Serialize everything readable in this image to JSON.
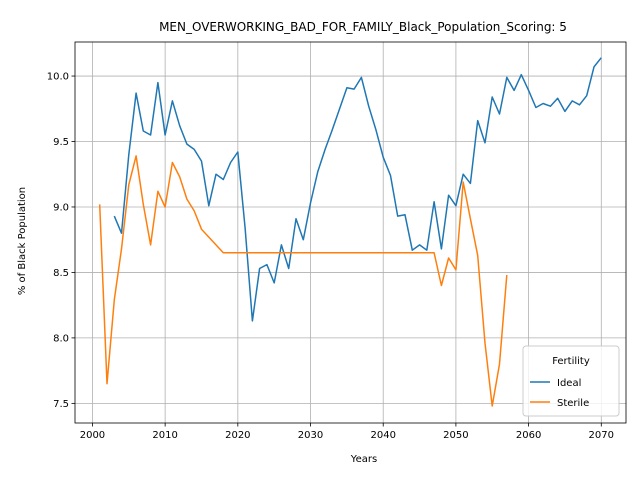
{
  "chart_data": {
    "type": "line",
    "title": "MEN_OVERWORKING_BAD_FOR_FAMILY_Black_Population_Scoring: 5",
    "xlabel": "Years",
    "ylabel": "% of Black Population",
    "xlim": [
      1997.6,
      2073.4
    ],
    "ylim": [
      7.35,
      10.26
    ],
    "xticks": [
      2000,
      2010,
      2020,
      2030,
      2040,
      2050,
      2060,
      2070
    ],
    "yticks": [
      7.5,
      8.0,
      8.5,
      9.0,
      9.5,
      10.0
    ],
    "ytick_labels": [
      "7.5",
      "8.0",
      "8.5",
      "9.0",
      "9.5",
      "10.0"
    ],
    "grid": true,
    "legend": {
      "title": "Fertility",
      "location": "lower right"
    },
    "series": [
      {
        "name": "Ideal",
        "color": "#1f77b4",
        "x": [
          2003,
          2004,
          2005,
          2006,
          2007,
          2008,
          2009,
          2010,
          2011,
          2012,
          2013,
          2014,
          2015,
          2016,
          2017,
          2018,
          2019,
          2020,
          2021,
          2022,
          2023,
          2024,
          2025,
          2026,
          2027,
          2028,
          2029,
          2030,
          2031,
          2032,
          2033,
          2034,
          2035,
          2036,
          2037,
          2038,
          2039,
          2040,
          2041,
          2042,
          2043,
          2044,
          2045,
          2046,
          2047,
          2048,
          2049,
          2050,
          2051,
          2052,
          2053,
          2054,
          2055,
          2056,
          2057,
          2058,
          2059,
          2060,
          2061,
          2062,
          2063,
          2064,
          2065,
          2066,
          2067,
          2068,
          2069,
          2070
        ],
        "y": [
          8.93,
          8.8,
          9.4,
          9.87,
          9.58,
          9.55,
          9.95,
          9.55,
          9.81,
          9.62,
          9.48,
          9.44,
          9.35,
          9.01,
          9.25,
          9.21,
          9.34,
          9.42,
          8.84,
          8.13,
          8.53,
          8.56,
          8.42,
          8.71,
          8.53,
          8.91,
          8.75,
          9.03,
          9.27,
          9.44,
          9.59,
          9.75,
          9.91,
          9.9,
          9.99,
          9.77,
          9.59,
          9.38,
          9.24,
          8.93,
          8.94,
          8.67,
          8.71,
          8.67,
          9.04,
          8.68,
          9.09,
          9.01,
          9.25,
          9.18,
          9.66,
          9.49,
          9.84,
          9.71,
          9.99,
          9.89,
          10.01,
          9.89,
          9.76,
          9.79,
          9.77,
          9.83,
          9.73,
          9.81,
          9.78,
          9.85,
          10.07,
          10.14
        ]
      },
      {
        "name": "Sterile",
        "color": "#ff7f0e",
        "x": [
          2001,
          2002,
          2003,
          2004,
          2005,
          2006,
          2007,
          2008,
          2009,
          2010,
          2011,
          2012,
          2013,
          2014,
          2015,
          2016,
          2017,
          2018,
          2019,
          2020,
          2021,
          2022,
          2023,
          2024,
          2025,
          2026,
          2027,
          2028,
          2029,
          2030,
          2031,
          2032,
          2033,
          2034,
          2035,
          2036,
          2037,
          2038,
          2039,
          2040,
          2041,
          2042,
          2043,
          2044,
          2045,
          2046,
          2047,
          2048,
          2049,
          2050,
          2051,
          2052,
          2053,
          2054,
          2055,
          2056,
          2057
        ],
        "y": [
          9.02,
          7.65,
          8.29,
          8.68,
          9.17,
          9.39,
          9.02,
          8.71,
          9.12,
          9.0,
          9.34,
          9.23,
          9.06,
          8.97,
          8.83,
          8.77,
          8.71,
          8.65,
          8.65,
          8.65,
          8.65,
          8.65,
          8.65,
          8.65,
          8.65,
          8.65,
          8.65,
          8.65,
          8.65,
          8.65,
          8.65,
          8.65,
          8.65,
          8.65,
          8.65,
          8.65,
          8.65,
          8.65,
          8.65,
          8.65,
          8.65,
          8.65,
          8.65,
          8.65,
          8.65,
          8.65,
          8.65,
          8.4,
          8.61,
          8.52,
          9.19,
          8.91,
          8.63,
          7.96,
          7.48,
          7.8,
          8.48
        ]
      }
    ]
  }
}
